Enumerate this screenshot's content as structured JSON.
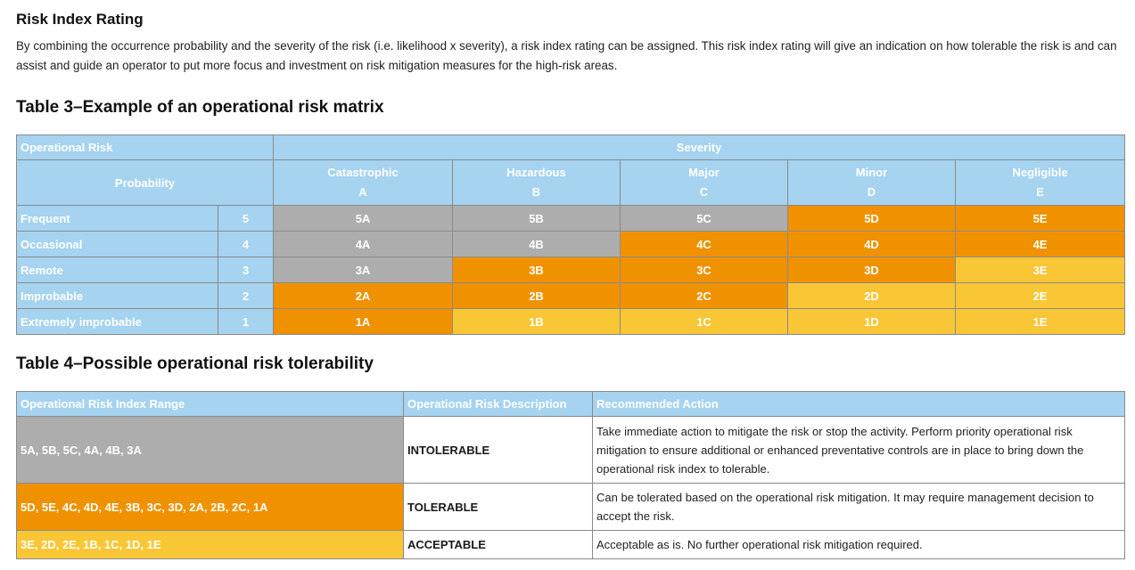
{
  "section_title": "Risk Index Rating",
  "intro": "By combining the occurrence probability and the severity of the risk (i.e. likelihood x severity), a risk index rating can be assigned. This risk index rating will give an indication on how tolerable the risk is and can assist and guide an operator to put more focus and investment on risk mitigation measures for the high-risk areas.",
  "table3": {
    "caption": "Table 3–Example of an operational risk matrix",
    "header_operational_risk": "Operational Risk",
    "header_severity": "Severity",
    "header_probability": "Probability",
    "severity_columns": [
      {
        "name": "Catastrophic",
        "code": "A"
      },
      {
        "name": "Hazardous",
        "code": "B"
      },
      {
        "name": "Major",
        "code": "C"
      },
      {
        "name": "Minor",
        "code": "D"
      },
      {
        "name": "Negligible",
        "code": "E"
      }
    ],
    "rows": [
      {
        "label": "Frequent",
        "value": "5",
        "cells": [
          "5A",
          "5B",
          "5C",
          "5D",
          "5E"
        ]
      },
      {
        "label": "Occasional",
        "value": "4",
        "cells": [
          "4A",
          "4B",
          "4C",
          "4D",
          "4E"
        ]
      },
      {
        "label": "Remote",
        "value": "3",
        "cells": [
          "3A",
          "3B",
          "3C",
          "3D",
          "3E"
        ]
      },
      {
        "label": "Improbable",
        "value": "2",
        "cells": [
          "2A",
          "2B",
          "2C",
          "2D",
          "2E"
        ]
      },
      {
        "label": "Extremely improbable",
        "value": "1",
        "cells": [
          "1A",
          "1B",
          "1C",
          "1D",
          "1E"
        ]
      }
    ],
    "colors": {
      "header": "#a5d3f0",
      "intolerable": "#adadad",
      "tolerable": "#f09200",
      "acceptable": "#f9c635"
    }
  },
  "table4": {
    "caption": "Table 4–Possible operational risk tolerability",
    "headers": [
      "Operational Risk Index Range",
      "Operational Risk Description",
      "Recommended Action"
    ],
    "rows": [
      {
        "range": "5A, 5B, 5C, 4A, 4B, 3A",
        "description": "INTOLERABLE",
        "action": "Take immediate action to mitigate the risk or stop the activity. Perform priority operational risk mitigation to ensure additional or enhanced preventative controls are in place to bring down the operational risk index to tolerable."
      },
      {
        "range": "5D, 5E, 4C, 4D, 4E, 3B, 3C, 3D, 2A, 2B, 2C, 1A",
        "description": "TOLERABLE",
        "action": "Can be tolerated based on the operational risk mitigation. It may require management decision to accept the risk."
      },
      {
        "range": "3E, 2D, 2E, 1B, 1C, 1D, 1E",
        "description": "ACCEPTABLE",
        "action": "Acceptable as is. No further operational risk mitigation required."
      }
    ]
  }
}
